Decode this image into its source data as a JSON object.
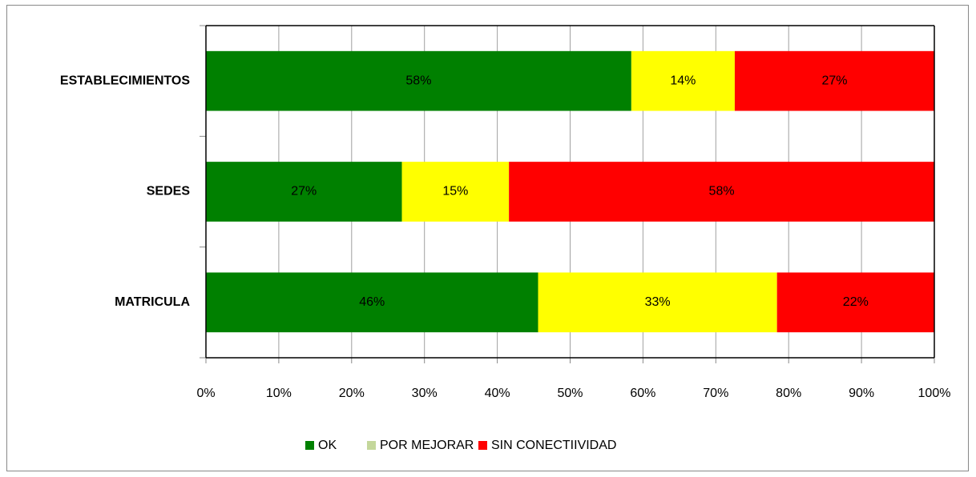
{
  "chart_data": {
    "type": "stacked_bar_horizontal",
    "categories": [
      "ESTABLECIMIENTOS",
      "SEDES",
      "MATRICULA"
    ],
    "series": [
      {
        "name": "OK",
        "color": "#008000",
        "legend_color": "#008000",
        "label_color": "#ffffff",
        "values": [
          58.4,
          26.9,
          45.6
        ],
        "value_labels": [
          "58%",
          "27%",
          "46%"
        ]
      },
      {
        "name": "POR MEJORAR",
        "color": "#ffff00",
        "legend_color": "#c4d79b",
        "label_color": "#000000",
        "values": [
          14.2,
          14.7,
          32.8
        ],
        "value_labels": [
          "14%",
          "15%",
          "33%"
        ]
      },
      {
        "name": "SIN CONECTIIVIDAD",
        "color": "#ff0000",
        "legend_color": "#ff0000",
        "label_color": "#ffffff",
        "values": [
          27.4,
          58.4,
          21.6
        ],
        "value_labels": [
          "27%",
          "58%",
          "22%"
        ]
      }
    ],
    "xlim": [
      0,
      100
    ],
    "xticks": [
      {
        "value": 0,
        "label": "0%"
      },
      {
        "value": 10,
        "label": "10%"
      },
      {
        "value": 20,
        "label": "20%"
      },
      {
        "value": 30,
        "label": "30%"
      },
      {
        "value": 40,
        "label": "40%"
      },
      {
        "value": 50,
        "label": "50%"
      },
      {
        "value": 60,
        "label": "60%"
      },
      {
        "value": 70,
        "label": "70%"
      },
      {
        "value": 80,
        "label": "80%"
      },
      {
        "value": 90,
        "label": "90%"
      },
      {
        "value": 100,
        "label": "100%"
      }
    ],
    "grid": true,
    "legend": "bottom"
  }
}
